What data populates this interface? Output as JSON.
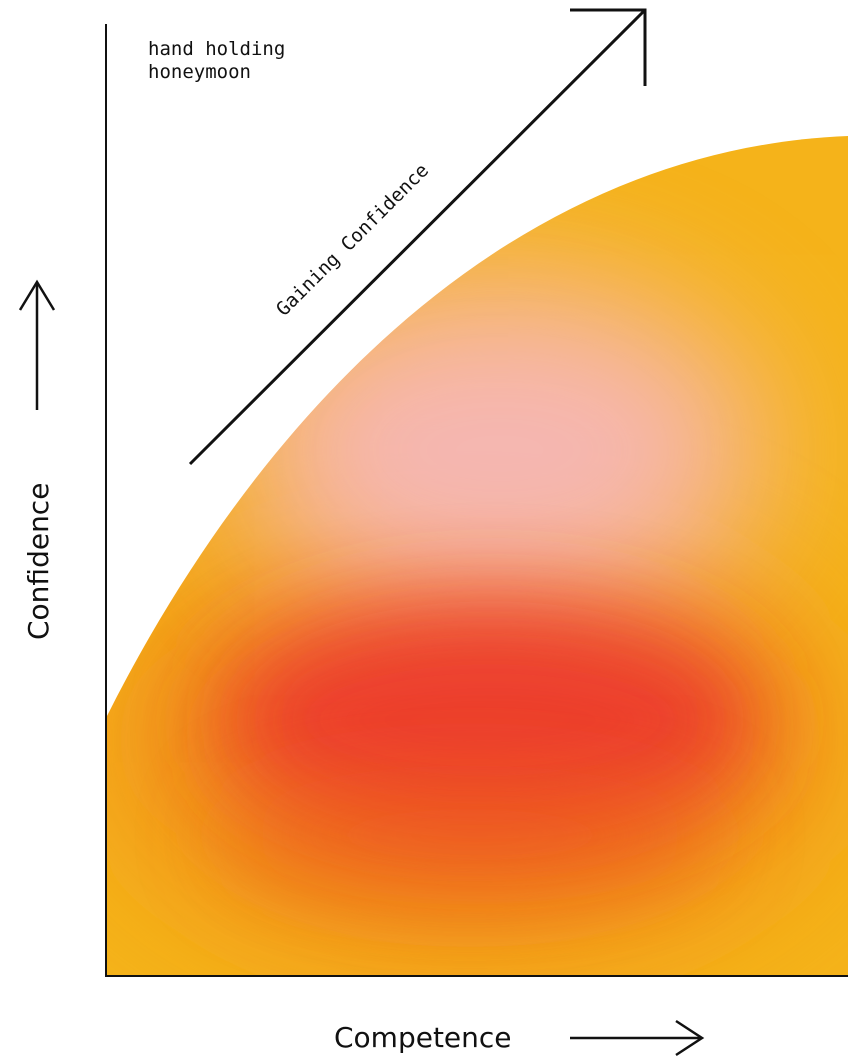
{
  "diagram": {
    "corner_note_line1": "hand holding",
    "corner_note_line2": "honeymoon",
    "diagonal_label": "Gaining Confidence",
    "y_axis_label": "Confidence",
    "x_axis_label": "Competence",
    "colors": {
      "gold": "#F5B31A",
      "orange": "#F08A1E",
      "red": "#EC3A2E",
      "pink": "#F6B7B9",
      "axis": "#111111"
    }
  }
}
